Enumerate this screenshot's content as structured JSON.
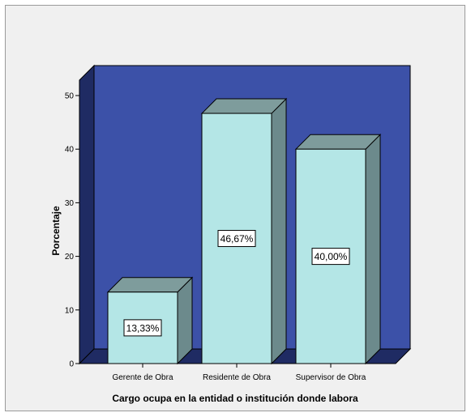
{
  "chart_data": {
    "type": "bar",
    "categories": [
      "Gerente de Obra",
      "Residente de Obra",
      "Supervisor de Obra"
    ],
    "values": [
      13.33,
      46.67,
      40.0
    ],
    "data_labels": [
      "13,33%",
      "46,67%",
      "40,00%"
    ],
    "xlabel": "Cargo ocupa en la entidad o institución donde labora",
    "ylabel": "Porcentaje",
    "ylim": [
      0,
      50
    ],
    "yticks": [
      0,
      10,
      20,
      30,
      40,
      50
    ],
    "grid": false,
    "legend": "none",
    "style": "3d",
    "colors": {
      "back_wall": "#3c51a8",
      "side_wall": "#1f2b63",
      "floor": "#1f2b63",
      "bar_front": "#b4e6e6",
      "bar_side": "#6c8a8c",
      "bar_top": "#7e9c9c",
      "background": "#f0f0f0"
    }
  }
}
